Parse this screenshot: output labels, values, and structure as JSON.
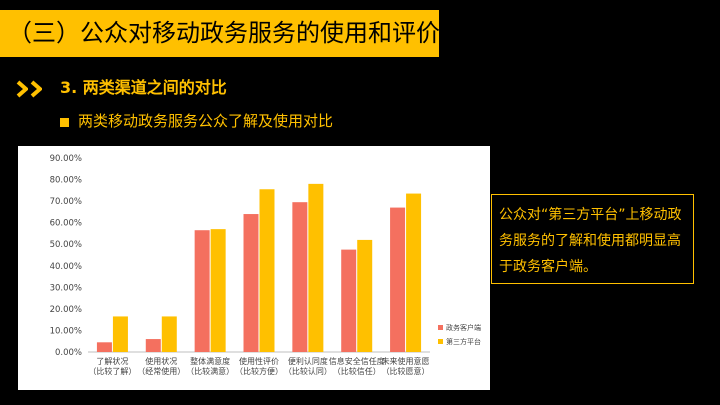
{
  "header": {
    "title": "（三）公众对移动政务服务的使用和评价"
  },
  "section": {
    "number_title": "3. 两类渠道之间的对比"
  },
  "bullet": {
    "text": "两类移动政务服务公众了解及使用对比"
  },
  "note": {
    "text": "公众对“第三方平台”上移动政务服务的了解和使用都明显高于政务客户端。"
  },
  "colors": {
    "accent": "#FFC000",
    "series_client": "#F4705F",
    "series_platform": "#FFC000",
    "background": "#000000"
  },
  "icons": {
    "section_marker": "double-chevron-right-icon",
    "bullet": "square-bullet-icon"
  },
  "chart_data": {
    "type": "bar",
    "categories": [
      [
        "了解状况",
        "（比较了解）"
      ],
      [
        "使用状况",
        "（经常使用）"
      ],
      [
        "整体满意度",
        "（比较满意）"
      ],
      [
        "使用性评价",
        "（比较方便）"
      ],
      [
        "便利认同度",
        "（比较认同）"
      ],
      [
        "信息安全信任度",
        "（比较信任）"
      ],
      [
        "未来使用意愿",
        "（比较愿意）"
      ]
    ],
    "series": [
      {
        "name": "政务客户端",
        "values": [
          4.5,
          6.0,
          56.5,
          64.0,
          69.5,
          47.5,
          67.0
        ]
      },
      {
        "name": "第三方平台",
        "values": [
          16.5,
          16.5,
          57.0,
          75.5,
          78.0,
          52.0,
          73.5
        ]
      }
    ],
    "ylim": [
      0,
      90
    ],
    "yticks": [
      "0.00%",
      "10.00%",
      "20.00%",
      "30.00%",
      "40.00%",
      "50.00%",
      "60.00%",
      "70.00%",
      "80.00%",
      "90.00%"
    ],
    "title": "",
    "xlabel": "",
    "ylabel": "",
    "grid": false,
    "legend": "right"
  }
}
